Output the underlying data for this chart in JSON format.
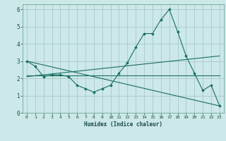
{
  "xlabel": "Humidex (Indice chaleur)",
  "bg_color": "#cce8e8",
  "grid_color": "#aacaca",
  "line_color": "#1a6e64",
  "xlim": [
    -0.5,
    23.5
  ],
  "ylim": [
    0,
    6.3
  ],
  "xticks": [
    0,
    1,
    2,
    3,
    4,
    5,
    6,
    7,
    8,
    9,
    10,
    11,
    12,
    13,
    14,
    15,
    16,
    17,
    18,
    19,
    20,
    21,
    22,
    23
  ],
  "yticks": [
    0,
    1,
    2,
    3,
    4,
    5,
    6
  ],
  "series1_x": [
    0,
    1,
    2,
    3,
    4,
    5,
    6,
    7,
    8,
    9,
    10,
    11,
    12,
    13,
    14,
    15,
    16,
    17,
    18,
    19,
    20,
    21,
    22,
    23
  ],
  "series1_y": [
    3.0,
    2.7,
    2.1,
    2.2,
    2.2,
    2.1,
    1.6,
    1.4,
    1.2,
    1.4,
    1.6,
    2.3,
    2.9,
    3.8,
    4.6,
    4.6,
    5.4,
    6.0,
    4.7,
    3.3,
    2.3,
    1.3,
    1.6,
    0.4
  ],
  "series2_x": [
    0,
    23
  ],
  "series2_y": [
    3.0,
    0.4
  ],
  "series3_x": [
    0,
    23
  ],
  "series3_y": [
    2.15,
    2.15
  ],
  "series4_x": [
    0,
    23
  ],
  "series4_y": [
    2.1,
    3.3
  ]
}
